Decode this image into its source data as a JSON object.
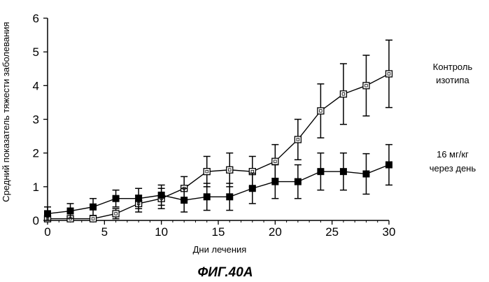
{
  "chart_data": {
    "type": "line",
    "title": "",
    "figure_caption": "ФИГ.40А",
    "xlabel": "Дни лечения",
    "ylabel": "Средний показатель тяжести заболевания",
    "xlim": [
      0,
      30
    ],
    "ylim": [
      0,
      6
    ],
    "x_ticks": [
      "0",
      "5",
      "10",
      "15",
      "20",
      "25",
      "30"
    ],
    "y_ticks": [
      "0",
      "1",
      "2",
      "3",
      "4",
      "5",
      "6"
    ],
    "grid": false,
    "series": [
      {
        "name": "Контроль изотипа",
        "label_lines": [
          "Контроль",
          "изотипа"
        ],
        "marker": "open-square",
        "x": [
          0,
          2,
          4,
          6,
          8,
          10,
          12,
          14,
          16,
          18,
          20,
          22,
          24,
          26,
          28,
          30
        ],
        "y": [
          0.05,
          0.05,
          0.05,
          0.2,
          0.5,
          0.65,
          0.95,
          1.45,
          1.5,
          1.45,
          1.75,
          2.4,
          3.25,
          3.75,
          4.0,
          4.35
        ],
        "err": [
          0.05,
          0.05,
          0.05,
          0.15,
          0.25,
          0.3,
          0.35,
          0.45,
          0.5,
          0.45,
          0.5,
          0.6,
          0.8,
          0.9,
          0.9,
          1.0
        ]
      },
      {
        "name": "16 мг/кг через день",
        "label_lines": [
          "16 мг/кг",
          "через день"
        ],
        "marker": "filled-square",
        "x": [
          0,
          2,
          4,
          6,
          8,
          10,
          12,
          14,
          16,
          18,
          20,
          22,
          24,
          26,
          28,
          30
        ],
        "y": [
          0.2,
          0.28,
          0.4,
          0.65,
          0.65,
          0.75,
          0.6,
          0.7,
          0.7,
          0.95,
          1.15,
          1.15,
          1.45,
          1.45,
          1.38,
          1.65
        ],
        "err": [
          0.2,
          0.22,
          0.25,
          0.25,
          0.3,
          0.3,
          0.35,
          0.4,
          0.4,
          0.45,
          0.5,
          0.5,
          0.55,
          0.55,
          0.6,
          0.6
        ]
      }
    ]
  }
}
